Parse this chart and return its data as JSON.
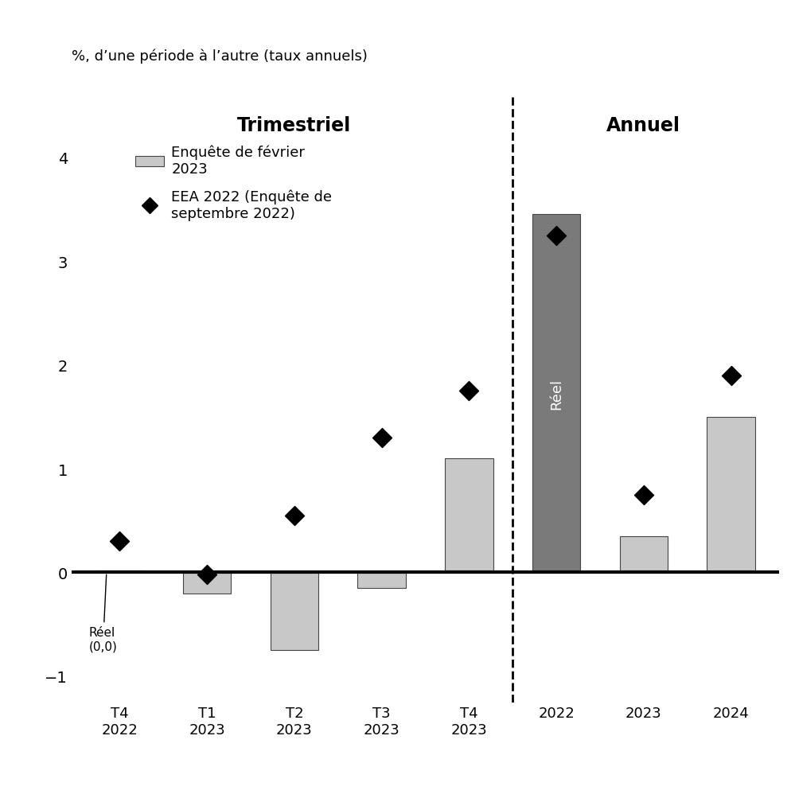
{
  "title_top": "%, d’une période à l’autre (taux annuels)",
  "section_trimestriel": "Trimestriel",
  "section_annuel": "Annuel",
  "legend_bar": "Enquête de février\n2023",
  "legend_diamond": "EEA 2022 (Enquête de\nseptembre 2022)",
  "bar_categories": [
    "T4\n2022",
    "T1\n2023",
    "T2\n2023",
    "T3\n2023",
    "T4\n2023",
    "2022",
    "2023",
    "2024"
  ],
  "bar_values": [
    0.02,
    -0.2,
    -0.75,
    -0.15,
    1.1,
    3.45,
    0.35,
    1.5
  ],
  "bar_colors": [
    "#c8c8c8",
    "#c8c8c8",
    "#c8c8c8",
    "#c8c8c8",
    "#c8c8c8",
    "#7a7a7a",
    "#c8c8c8",
    "#c8c8c8"
  ],
  "diamond_values": [
    0.3,
    -0.02,
    0.55,
    1.3,
    1.75,
    3.25,
    0.75,
    1.9
  ],
  "ylim": [
    -1.25,
    4.6
  ],
  "yticks": [
    -1,
    0,
    1,
    2,
    3,
    4
  ],
  "reel_annotation": "Réel\n(0,0)",
  "reel_bar_label": "Réel",
  "background_color": "#ffffff"
}
